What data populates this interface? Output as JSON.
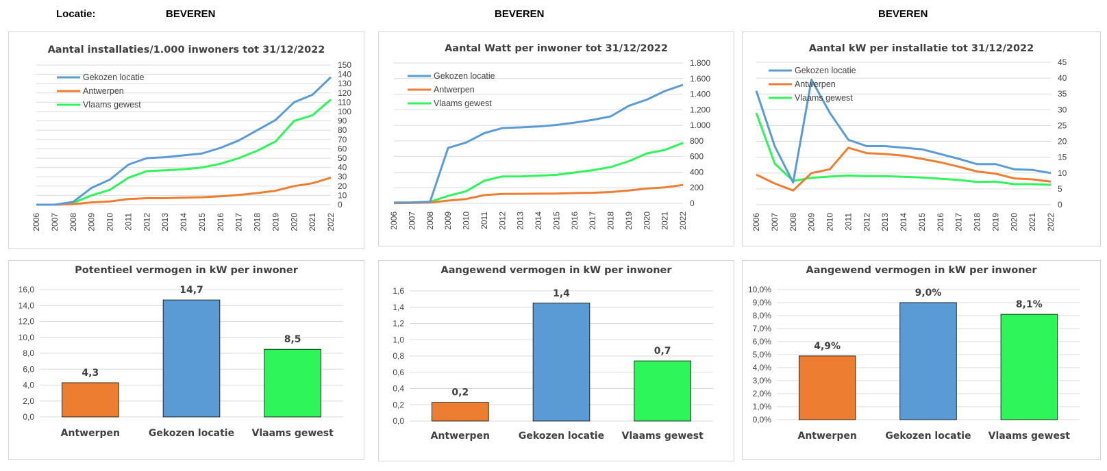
{
  "header": {
    "locatie_label": "Locatie:",
    "location_1": "BEVEREN",
    "location_2": "BEVEREN",
    "location_3": "BEVEREN"
  },
  "colors": {
    "gekozen": "#5B9BD5",
    "antwerpen": "#ED7D31",
    "vlaams": "#2EF55A",
    "grid": "#d9d9d9"
  },
  "chart_data": [
    {
      "type": "line",
      "title": "Aantal installaties/1.000  inwoners tot 31/12/2022",
      "x": [
        "2006",
        "2007",
        "2008",
        "2009",
        "2010",
        "2011",
        "2012",
        "2013",
        "2014",
        "2015",
        "2016",
        "2017",
        "2018",
        "2019",
        "2020",
        "2021",
        "2022"
      ],
      "y_axis_side": "right",
      "ylim": [
        0,
        150
      ],
      "yticks": [
        0,
        10,
        20,
        30,
        40,
        50,
        60,
        70,
        80,
        90,
        100,
        110,
        120,
        130,
        140,
        150
      ],
      "ytick_labels": [
        "0",
        "10",
        "20",
        "30",
        "40",
        "50",
        "60",
        "70",
        "80",
        "90",
        "100",
        "110",
        "120",
        "130",
        "140",
        "150"
      ],
      "legend_placement": "top-left",
      "series": [
        {
          "name": "Gekozen locatie",
          "color_key": "gekozen",
          "values": [
            0,
            0,
            3,
            18,
            27,
            43,
            50,
            51,
            53,
            55,
            61,
            69,
            80,
            91,
            110,
            118,
            137
          ]
        },
        {
          "name": "Antwerpen",
          "color_key": "antwerpen",
          "values": [
            0,
            0,
            0.5,
            2.5,
            3.5,
            6,
            7,
            7,
            7.5,
            8,
            9,
            10.5,
            12.5,
            15,
            20,
            23,
            29
          ]
        },
        {
          "name": "Vlaams gewest",
          "color_key": "vlaams",
          "values": [
            0,
            0,
            2,
            10,
            16,
            29,
            36,
            37,
            38,
            40,
            44,
            50,
            58,
            68,
            90,
            96,
            113
          ]
        }
      ]
    },
    {
      "type": "line",
      "title": "Aantal Watt per inwoner tot 31/12/2022",
      "x": [
        "2006",
        "2007",
        "2008",
        "2009",
        "2010",
        "2011",
        "2012",
        "2013",
        "2014",
        "2015",
        "2016",
        "2017",
        "2018",
        "2019",
        "2020",
        "2021",
        "2022"
      ],
      "y_axis_side": "right",
      "ylim": [
        0,
        1800
      ],
      "yticks": [
        0,
        200,
        400,
        600,
        800,
        1000,
        1200,
        1400,
        1600,
        1800
      ],
      "ytick_labels": [
        "0",
        "200",
        "400",
        "600",
        "800",
        "1.000",
        "1.200",
        "1.400",
        "1.600",
        "1.800"
      ],
      "legend_placement": "top-left",
      "series": [
        {
          "name": "Gekozen locatie",
          "color_key": "gekozen",
          "values": [
            10,
            12,
            20,
            710,
            780,
            900,
            965,
            975,
            985,
            1005,
            1035,
            1070,
            1115,
            1250,
            1330,
            1440,
            1520
          ]
        },
        {
          "name": "Antwerpen",
          "color_key": "antwerpen",
          "values": [
            3,
            5,
            10,
            35,
            55,
            105,
            120,
            122,
            124,
            126,
            132,
            135,
            145,
            165,
            190,
            205,
            235
          ]
        },
        {
          "name": "Vlaams gewest",
          "color_key": "vlaams",
          "values": [
            8,
            10,
            20,
            95,
            155,
            290,
            345,
            345,
            355,
            365,
            395,
            425,
            465,
            540,
            640,
            685,
            775
          ]
        }
      ]
    },
    {
      "type": "line",
      "title": "Aantal kW per installatie  tot 31/12/2022",
      "x": [
        "2006",
        "2007",
        "2008",
        "2009",
        "2010",
        "2011",
        "2012",
        "2013",
        "2014",
        "2015",
        "2016",
        "2017",
        "2018",
        "2019",
        "2020",
        "2021",
        "2022"
      ],
      "y_axis_side": "right",
      "ylim": [
        0,
        45
      ],
      "yticks": [
        0,
        5,
        10,
        15,
        20,
        25,
        30,
        35,
        40,
        45
      ],
      "ytick_labels": [
        "0",
        "5",
        "10",
        "15",
        "20",
        "25",
        "30",
        "35",
        "40",
        "45"
      ],
      "legend_placement": "top-left",
      "series": [
        {
          "name": "Gekozen locatie",
          "color_key": "gekozen",
          "values": [
            36,
            18.5,
            7,
            39.5,
            29,
            20.5,
            18.5,
            18.5,
            18,
            17.5,
            16,
            14.5,
            12.8,
            12.8,
            11.2,
            11,
            10
          ]
        },
        {
          "name": "Antwerpen",
          "color_key": "antwerpen",
          "values": [
            9.5,
            6.7,
            4.5,
            10,
            11.2,
            18,
            16.3,
            16,
            15.5,
            14.5,
            13.4,
            12,
            10.5,
            9.8,
            8.3,
            8,
            7.3
          ]
        },
        {
          "name": "Vlaams gewest",
          "color_key": "vlaams",
          "values": [
            29,
            13,
            7.5,
            8.5,
            8.9,
            9.2,
            9,
            9,
            8.8,
            8.6,
            8.2,
            7.8,
            7.2,
            7.3,
            6.5,
            6.5,
            6.3
          ]
        }
      ]
    },
    {
      "type": "bar",
      "title": "Potentieel  vermogen in kW per inwoner",
      "categories": [
        "Antwerpen",
        "Gekozen locatie",
        "Vlaams gewest"
      ],
      "color_keys": [
        "antwerpen",
        "gekozen",
        "vlaams"
      ],
      "values": [
        4.3,
        14.7,
        8.5
      ],
      "data_labels": [
        "4,3",
        "14,7",
        "8,5"
      ],
      "ylim": [
        0,
        16
      ],
      "yticks": [
        0,
        2,
        4,
        6,
        8,
        10,
        12,
        14,
        16
      ],
      "ytick_labels": [
        "0,0",
        "2,0",
        "4,0",
        "6,0",
        "8,0",
        "10,0",
        "12,0",
        "14,0",
        "16,0"
      ]
    },
    {
      "type": "bar",
      "title": "Aangewend vermogen in kW per inwoner",
      "categories": [
        "Antwerpen",
        "Gekozen locatie",
        "Vlaams gewest"
      ],
      "color_keys": [
        "antwerpen",
        "gekozen",
        "vlaams"
      ],
      "values": [
        0.23,
        1.45,
        0.74
      ],
      "data_labels": [
        "0,2",
        "1,4",
        "0,7"
      ],
      "ylim": [
        0,
        1.6
      ],
      "yticks": [
        0,
        0.2,
        0.4,
        0.6,
        0.8,
        1.0,
        1.2,
        1.4,
        1.6
      ],
      "ytick_labels": [
        "0,0",
        "0,2",
        "0,4",
        "0,6",
        "0,8",
        "1,0",
        "1,2",
        "1,4",
        "1,6"
      ]
    },
    {
      "type": "bar",
      "title": "Aangewend vermogen in kW per inwoner",
      "categories": [
        "Antwerpen",
        "Gekozen locatie",
        "Vlaams gewest"
      ],
      "color_keys": [
        "antwerpen",
        "gekozen",
        "vlaams"
      ],
      "values": [
        4.9,
        9.0,
        8.1
      ],
      "data_labels": [
        "4,9%",
        "9,0%",
        "8,1%"
      ],
      "ylim": [
        0,
        10
      ],
      "yticks": [
        0,
        1,
        2,
        3,
        4,
        5,
        6,
        7,
        8,
        9,
        10
      ],
      "ytick_labels": [
        "0,0%",
        "1,0%",
        "2,0%",
        "3,0%",
        "4,0%",
        "5,0%",
        "6,0%",
        "7,0%",
        "8,0%",
        "9,0%",
        "10,0%"
      ]
    }
  ]
}
